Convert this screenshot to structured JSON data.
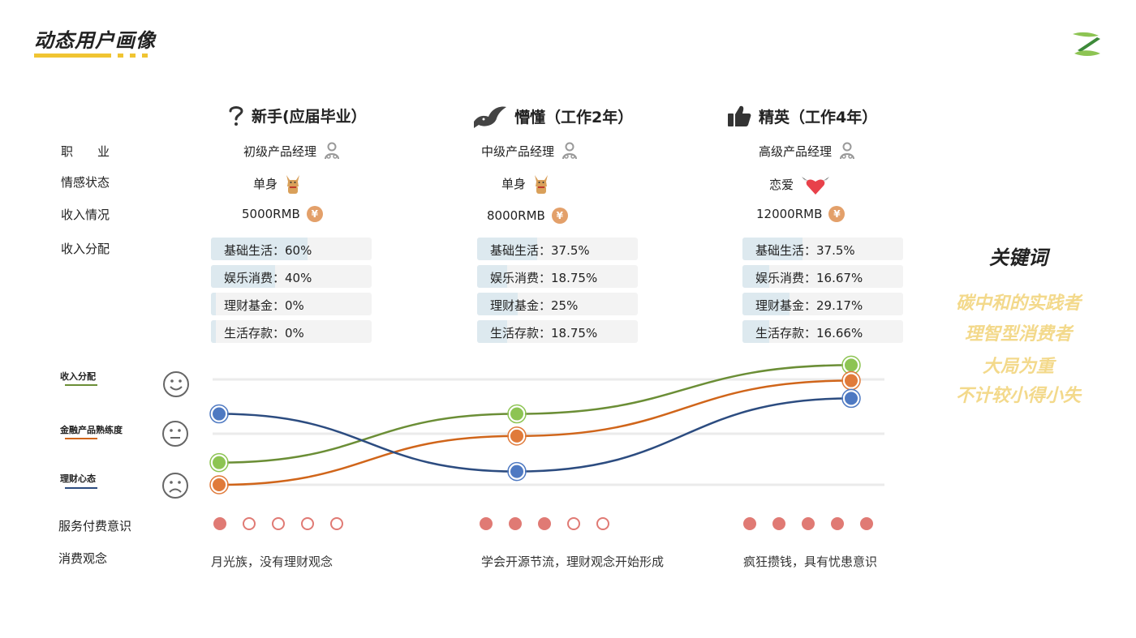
{
  "page": {
    "title": "动态用户画像",
    "brand_color": "#f0c432"
  },
  "rows": {
    "job": "职　　业",
    "relationship": "情感状态",
    "income": "收入情况",
    "allocation": "收入分配",
    "service": "服务付费意识",
    "view": "消费观念"
  },
  "stages": [
    {
      "title": "新手(应届毕业）",
      "icon": "question-icon",
      "job": "初级产品经理",
      "relationship": "单身",
      "relationship_icon": "dog-icon",
      "income": "5000RMB",
      "allocation": [
        {
          "label": "基础生活：60%",
          "value": 60
        },
        {
          "label": "娱乐消费：40%",
          "value": 40
        },
        {
          "label": "理财基金：0%",
          "value": 0
        },
        {
          "label": "生活存款：0%",
          "value": 0
        }
      ],
      "service_awareness": 1,
      "view": "月光族，没有理财观念"
    },
    {
      "title": "懵懂（工作2年）",
      "icon": "bird-icon",
      "job": "中级产品经理",
      "relationship": "单身",
      "relationship_icon": "dog-icon",
      "income": "8000RMB",
      "allocation": [
        {
          "label": "基础生活：37.5%",
          "value": 37.5
        },
        {
          "label": "娱乐消费：18.75%",
          "value": 18.75
        },
        {
          "label": "理财基金：25%",
          "value": 25
        },
        {
          "label": "生活存款：18.75%",
          "value": 18.75
        }
      ],
      "service_awareness": 3,
      "view": "学会开源节流，理财观念开始形成"
    },
    {
      "title": "精英（工作4年）",
      "icon": "thumbs-up-icon",
      "job": "高级产品经理",
      "relationship": "恋爱",
      "relationship_icon": "winged-heart-icon",
      "income": "12000RMB",
      "allocation": [
        {
          "label": "基础生活：37.5%",
          "value": 37.5
        },
        {
          "label": "娱乐消费：16.67%",
          "value": 16.67
        },
        {
          "label": "理财基金：29.17%",
          "value": 29.17
        },
        {
          "label": "生活存款：16.66%",
          "value": 16.66
        }
      ],
      "service_awareness": 5,
      "view": "疯狂攒钱，具有忧患意识"
    }
  ],
  "chart_data": {
    "type": "line",
    "x": [
      "新手(应届毕业）",
      "懵懂（工作2年）",
      "精英（工作4年）"
    ],
    "ylevels": [
      "sad",
      "neutral",
      "happy"
    ],
    "ylim": [
      0,
      3
    ],
    "series": [
      {
        "name": "收入分配",
        "color": "#6b8e36",
        "fill": "#8dc453",
        "values": [
          0.5,
          1.6,
          2.7
        ]
      },
      {
        "name": "金融产品熟练度",
        "color": "#d0651a",
        "fill": "#e07a3a",
        "values": [
          0.0,
          1.1,
          2.35
        ]
      },
      {
        "name": "理财心态",
        "color": "#2c4c80",
        "fill": "#4e79c2",
        "values": [
          1.6,
          0.3,
          1.95
        ]
      }
    ],
    "grid": true
  },
  "keywords": {
    "title": "关键词",
    "items": [
      "碳中和的实践者",
      "理智型消费者",
      "大局为重",
      "不计较小得小失"
    ],
    "color": "#f3d98b"
  }
}
